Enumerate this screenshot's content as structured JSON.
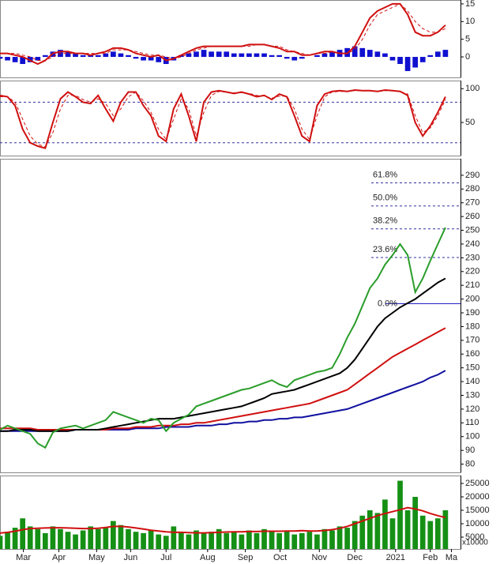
{
  "chart_data": [
    {
      "type": "line",
      "xlim": [
        0,
        61
      ],
      "ylim": [
        -5.8,
        16.1
      ],
      "yticks": [
        0,
        5,
        10,
        15
      ],
      "x": [
        0,
        1,
        2,
        3,
        4,
        5,
        6,
        7,
        8,
        9,
        10,
        11,
        12,
        13,
        14,
        15,
        16,
        17,
        18,
        19,
        20,
        21,
        22,
        23,
        24,
        25,
        26,
        27,
        28,
        29,
        30,
        31,
        32,
        33,
        34,
        35,
        36,
        37,
        38,
        39,
        40,
        41,
        42,
        43,
        44,
        45,
        46,
        47,
        48,
        49,
        50,
        51,
        52,
        53,
        54,
        55,
        56,
        57,
        58,
        59
      ],
      "series": [
        {
          "kind": "bar",
          "color": "#1010d0",
          "values": [
            -0.5,
            -1,
            -1.5,
            -2,
            -1.5,
            -1,
            0.5,
            1.5,
            2,
            1.5,
            1,
            0.5,
            0.5,
            0.5,
            1,
            1.5,
            1,
            0.5,
            -0.5,
            -1,
            -1,
            -1.5,
            -2,
            -1,
            0.5,
            1,
            1.5,
            2,
            1.5,
            1.5,
            1.5,
            1,
            1,
            1,
            1,
            1,
            0.5,
            0.5,
            -0.5,
            -1,
            -0.5,
            0,
            0.5,
            1,
            1.5,
            2,
            2.5,
            3,
            2.5,
            2,
            1.5,
            1,
            -1,
            -2,
            -4,
            -3,
            -1.5,
            0.5,
            1.5,
            2
          ]
        },
        {
          "color": "#d01010",
          "dashed": true,
          "values": [
            1,
            1,
            1,
            0.5,
            0,
            -1,
            -1,
            0,
            1,
            1,
            1,
            1,
            1,
            1,
            1,
            2,
            2,
            2,
            1.5,
            1,
            0.5,
            0.5,
            0,
            -0.5,
            0,
            1,
            2,
            2.5,
            3,
            3,
            3,
            3,
            3,
            3,
            3.5,
            3.5,
            3,
            3,
            2,
            1.5,
            1,
            0.5,
            1,
            1,
            1.5,
            1,
            1,
            2,
            5,
            9,
            12,
            13,
            14,
            15,
            13,
            10,
            8,
            7,
            7,
            8
          ]
        },
        {
          "color": "#d01010",
          "values": [
            1,
            1,
            0.5,
            0,
            -1,
            -2,
            -1,
            1,
            1.5,
            1.5,
            1,
            1,
            0.5,
            1,
            1.5,
            2.5,
            2.5,
            2,
            1,
            0.5,
            0,
            0.5,
            -1,
            -0.5,
            0.5,
            1.5,
            2.5,
            3,
            3,
            3,
            3,
            3,
            3,
            3.5,
            3.5,
            3.5,
            3,
            2.5,
            1.5,
            1.5,
            0.5,
            0.5,
            1,
            1.5,
            1.5,
            1,
            1,
            3,
            7,
            11,
            13,
            14,
            15,
            15,
            12,
            7,
            6,
            6,
            7,
            9
          ]
        }
      ]
    },
    {
      "type": "line",
      "xlim": [
        0,
        61
      ],
      "ylim": [
        1,
        112
      ],
      "yticks": [
        50,
        100
      ],
      "levels": [
        {
          "value": 80,
          "line_style": "dashed"
        },
        {
          "value": 20,
          "line_style": "dashed"
        }
      ],
      "x": [
        0,
        1,
        2,
        3,
        4,
        5,
        6,
        7,
        8,
        9,
        10,
        11,
        12,
        13,
        14,
        15,
        16,
        17,
        18,
        19,
        20,
        21,
        22,
        23,
        24,
        25,
        26,
        27,
        28,
        29,
        30,
        31,
        32,
        33,
        34,
        35,
        36,
        37,
        38,
        39,
        40,
        41,
        42,
        43,
        44,
        45,
        46,
        47,
        48,
        49,
        50,
        51,
        52,
        53,
        54,
        55,
        56,
        57,
        58,
        59
      ],
      "series": [
        {
          "color": "#d01010",
          "dashed": true,
          "values": [
            88,
            88,
            80,
            55,
            30,
            18,
            14,
            35,
            70,
            90,
            90,
            84,
            80,
            85,
            78,
            60,
            70,
            88,
            95,
            82,
            65,
            40,
            25,
            55,
            85,
            70,
            30,
            65,
            90,
            96,
            95,
            94,
            94,
            93,
            90,
            89,
            86,
            89,
            89,
            70,
            40,
            25,
            60,
            88,
            95,
            96,
            96,
            97,
            97,
            97,
            96,
            97,
            97,
            96,
            92,
            60,
            35,
            42,
            60,
            84
          ]
        },
        {
          "color": "#d01010",
          "values": [
            90,
            88,
            75,
            40,
            20,
            15,
            12,
            50,
            85,
            95,
            88,
            80,
            78,
            90,
            70,
            52,
            80,
            95,
            95,
            75,
            60,
            30,
            22,
            70,
            92,
            60,
            22,
            80,
            95,
            97,
            95,
            93,
            95,
            92,
            88,
            90,
            84,
            92,
            88,
            60,
            30,
            22,
            75,
            92,
            96,
            97,
            96,
            98,
            97,
            97,
            96,
            98,
            97,
            96,
            90,
            50,
            30,
            45,
            65,
            88
          ]
        }
      ]
    },
    {
      "type": "line",
      "xlim": [
        0,
        61
      ],
      "ylim": [
        74,
        302
      ],
      "yticks": [
        80,
        90,
        100,
        110,
        120,
        130,
        140,
        150,
        160,
        170,
        180,
        190,
        200,
        210,
        220,
        230,
        240,
        250,
        260,
        270,
        280,
        290
      ],
      "levels": [
        {
          "value": 196.7,
          "label": "0.0%",
          "line_style": "solid"
        },
        {
          "value": 230.2,
          "label": "23.6%",
          "line_style": "dashed"
        },
        {
          "value": 251,
          "label": "38.2%",
          "line_style": "dashed"
        },
        {
          "value": 267.7,
          "label": "50.0%",
          "line_style": "dashed"
        },
        {
          "value": 284.5,
          "label": "61.8%",
          "line_style": "dashed"
        }
      ],
      "x": [
        0,
        1,
        2,
        3,
        4,
        5,
        6,
        7,
        8,
        9,
        10,
        11,
        12,
        13,
        14,
        15,
        16,
        17,
        18,
        19,
        20,
        21,
        22,
        23,
        24,
        25,
        26,
        27,
        28,
        29,
        30,
        31,
        32,
        33,
        34,
        35,
        36,
        37,
        38,
        39,
        40,
        41,
        42,
        43,
        44,
        45,
        46,
        47,
        48,
        49,
        50,
        51,
        52,
        53,
        54,
        55,
        56,
        57,
        58,
        59
      ],
      "series": [
        {
          "color": "#1010a0",
          "values": [
            104,
            104,
            104,
            104,
            104,
            104,
            104,
            104,
            104,
            104,
            105,
            105,
            105,
            105,
            105,
            105,
            105,
            105,
            106,
            106,
            106,
            106,
            107,
            107,
            107,
            107,
            108,
            108,
            108,
            109,
            109,
            110,
            110,
            111,
            111,
            112,
            112,
            113,
            113,
            114,
            114,
            115,
            116,
            117,
            118,
            119,
            120,
            122,
            124,
            126,
            128,
            130,
            132,
            134,
            136,
            138,
            140,
            143,
            145,
            148
          ]
        },
        {
          "color": "#d01010",
          "values": [
            106,
            106,
            106,
            106,
            106,
            105,
            105,
            105,
            105,
            105,
            105,
            105,
            105,
            105,
            105,
            106,
            106,
            106,
            107,
            107,
            107,
            108,
            108,
            108,
            109,
            109,
            110,
            110,
            111,
            112,
            113,
            114,
            115,
            116,
            117,
            118,
            119,
            120,
            121,
            122,
            123,
            124,
            126,
            128,
            130,
            132,
            134,
            138,
            142,
            146,
            150,
            154,
            158,
            161,
            164,
            167,
            170,
            173,
            176,
            179
          ]
        },
        {
          "color": "#000000",
          "values": [
            104,
            104,
            105,
            105,
            105,
            104,
            104,
            104,
            104,
            104,
            105,
            105,
            105,
            105,
            106,
            107,
            108,
            109,
            110,
            111,
            112,
            113,
            113,
            113,
            114,
            115,
            116,
            117,
            118,
            119,
            120,
            121,
            122,
            124,
            126,
            128,
            131,
            132,
            133,
            134,
            136,
            138,
            140,
            142,
            144,
            146,
            150,
            156,
            164,
            172,
            180,
            186,
            190,
            194,
            197,
            200,
            204,
            208,
            212,
            215
          ]
        },
        {
          "color": "#2a9d2a",
          "values": [
            105,
            108,
            106,
            104,
            102,
            95,
            92,
            103,
            106,
            107,
            108,
            106,
            108,
            110,
            112,
            118,
            116,
            114,
            112,
            110,
            113,
            112,
            104,
            110,
            113,
            116,
            122,
            124,
            126,
            128,
            130,
            132,
            134,
            135,
            137,
            139,
            141,
            138,
            136,
            141,
            143,
            145,
            147,
            148,
            150,
            160,
            172,
            182,
            195,
            208,
            215,
            225,
            232,
            240,
            232,
            205,
            215,
            228,
            240,
            252
          ]
        }
      ]
    },
    {
      "type": "bar",
      "xlim": [
        0,
        61
      ],
      "ylim": [
        590,
        27940
      ],
      "yticks": [
        5000,
        10000,
        15000,
        20000,
        25000
      ],
      "unit_label": "x10000",
      "xticks": [
        {
          "value": 3.1,
          "label": "Mar"
        },
        {
          "value": 7.8,
          "label": "Apr"
        },
        {
          "value": 12.8,
          "label": "May"
        },
        {
          "value": 17.3,
          "label": "Jun"
        },
        {
          "value": 22,
          "label": "Jul"
        },
        {
          "value": 27.5,
          "label": "Aug"
        },
        {
          "value": 32.5,
          "label": "Sep"
        },
        {
          "value": 37.1,
          "label": "Oct"
        },
        {
          "value": 42.3,
          "label": "Nov"
        },
        {
          "value": 47,
          "label": "Dec"
        },
        {
          "value": 52.4,
          "label": "2021"
        },
        {
          "value": 57,
          "label": "Feb"
        },
        {
          "value": 59.8,
          "label": "Ma"
        }
      ],
      "x": [
        0,
        1,
        2,
        3,
        4,
        5,
        6,
        7,
        8,
        9,
        10,
        11,
        12,
        13,
        14,
        15,
        16,
        17,
        18,
        19,
        20,
        21,
        22,
        23,
        24,
        25,
        26,
        27,
        28,
        29,
        30,
        31,
        32,
        33,
        34,
        35,
        36,
        37,
        38,
        39,
        40,
        41,
        42,
        43,
        44,
        45,
        46,
        47,
        48,
        49,
        50,
        51,
        52,
        53,
        54,
        55,
        56,
        57,
        58,
        59
      ],
      "series": [
        {
          "kind": "bar",
          "color": "#159015",
          "values": [
            5500,
            7000,
            8500,
            12000,
            9000,
            8000,
            6500,
            9000,
            8000,
            7000,
            6000,
            7500,
            9000,
            8000,
            8500,
            11000,
            9500,
            8000,
            7000,
            6500,
            7500,
            6000,
            5500,
            9000,
            7000,
            6000,
            7500,
            6500,
            7000,
            8000,
            6500,
            7000,
            6000,
            7500,
            6500,
            8000,
            7000,
            6500,
            7500,
            6000,
            6500,
            7000,
            6000,
            8000,
            7500,
            9000,
            8500,
            11000,
            13000,
            15000,
            14000,
            19000,
            12000,
            26000,
            15000,
            20000,
            13000,
            11000,
            12000,
            15000
          ]
        },
        {
          "color": "#d01010",
          "values": [
            6500,
            6800,
            7200,
            7800,
            8200,
            8300,
            8400,
            8500,
            8500,
            8400,
            8300,
            8200,
            8200,
            8300,
            8600,
            9000,
            9000,
            8800,
            8400,
            8000,
            7600,
            7300,
            7000,
            6800,
            6800,
            6700,
            6600,
            6600,
            6700,
            6800,
            6900,
            7000,
            7000,
            7100,
            7100,
            7200,
            7200,
            7200,
            7300,
            7300,
            7400,
            7300,
            7300,
            7500,
            7800,
            8300,
            9000,
            10000,
            11000,
            12000,
            13000,
            13800,
            14500,
            15200,
            16000,
            15500,
            14800,
            13800,
            13000,
            12300
          ]
        }
      ]
    }
  ]
}
